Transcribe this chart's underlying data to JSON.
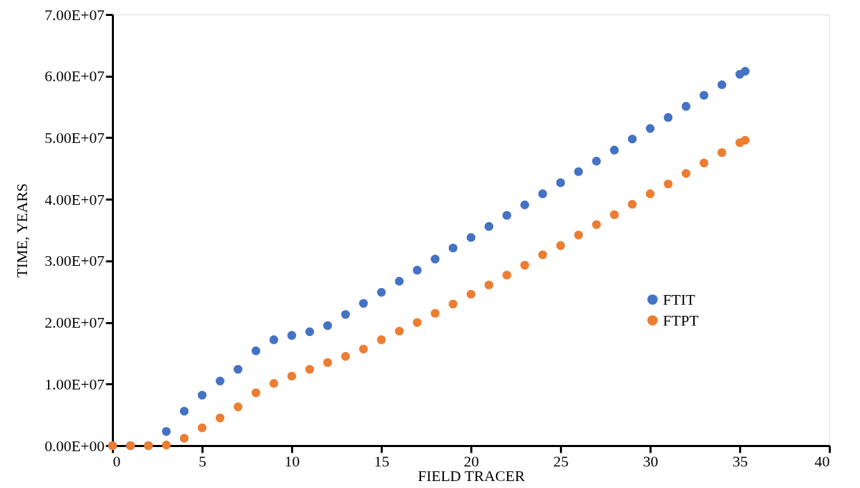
{
  "chart_data": {
    "type": "scatter",
    "xlabel": "FIELD TRACER",
    "ylabel": "TIME, YEARS",
    "x": [
      0,
      1,
      2,
      3,
      4,
      5,
      6,
      7,
      8,
      9,
      10,
      11,
      12,
      13,
      14,
      15,
      16,
      17,
      18,
      19,
      20,
      21,
      22,
      23,
      24,
      25,
      26,
      27,
      28,
      29,
      30,
      31,
      32,
      33,
      34,
      35,
      35.3
    ],
    "series": [
      {
        "name": "FTIT",
        "color": "#4472c4",
        "values": [
          0,
          0,
          0,
          2300000,
          5600000,
          8200000,
          10500000,
          12400000,
          15400000,
          17200000,
          17900000,
          18500000,
          19500000,
          21300000,
          23100000,
          24900000,
          26700000,
          28500000,
          30300000,
          32100000,
          33800000,
          35600000,
          37400000,
          39100000,
          40900000,
          42700000,
          44500000,
          46200000,
          48000000,
          49800000,
          51500000,
          53300000,
          55100000,
          56900000,
          58600000,
          60300000,
          60800000
        ]
      },
      {
        "name": "FTPT",
        "color": "#ed7d31",
        "values": [
          0,
          0,
          0,
          100000,
          1200000,
          2900000,
          4500000,
          6300000,
          8600000,
          10100000,
          11300000,
          12400000,
          13500000,
          14500000,
          15700000,
          17200000,
          18600000,
          20000000,
          21500000,
          23000000,
          24600000,
          26100000,
          27700000,
          29300000,
          31000000,
          32500000,
          34200000,
          35900000,
          37500000,
          39200000,
          40900000,
          42500000,
          44200000,
          45900000,
          47600000,
          49200000,
          49600000
        ]
      }
    ],
    "xlim": [
      0,
      40
    ],
    "xticks": [
      0,
      5,
      10,
      15,
      20,
      25,
      30,
      35,
      40
    ],
    "ylim": [
      0,
      70000000
    ],
    "yticks": [
      {
        "value": 0,
        "label": "0.00E+00"
      },
      {
        "value": 10000000,
        "label": "1.00E+07"
      },
      {
        "value": 20000000,
        "label": "2.00E+07"
      },
      {
        "value": 30000000,
        "label": "3.00E+07"
      },
      {
        "value": 40000000,
        "label": "4.00E+07"
      },
      {
        "value": 50000000,
        "label": "5.00E+07"
      },
      {
        "value": 60000000,
        "label": "6.00E+07"
      },
      {
        "value": 70000000,
        "label": "7.00E+07"
      }
    ],
    "grid": false,
    "legend": "right",
    "marker": "circle"
  }
}
